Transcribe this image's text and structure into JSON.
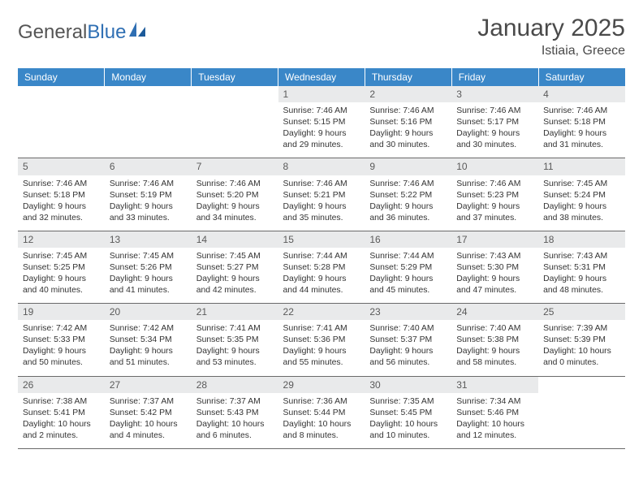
{
  "brand": {
    "part1": "General",
    "part2": "Blue"
  },
  "title": "January 2025",
  "location": "Istiaia, Greece",
  "header_color": "#3a87c8",
  "daynum_bg": "#e9eaeb",
  "text_color": "#333333",
  "columns": [
    "Sunday",
    "Monday",
    "Tuesday",
    "Wednesday",
    "Thursday",
    "Friday",
    "Saturday"
  ],
  "weeks": [
    [
      null,
      null,
      null,
      {
        "n": "1",
        "sunrise": "7:46 AM",
        "sunset": "5:15 PM",
        "day_h": "9",
        "day_m": "29"
      },
      {
        "n": "2",
        "sunrise": "7:46 AM",
        "sunset": "5:16 PM",
        "day_h": "9",
        "day_m": "30"
      },
      {
        "n": "3",
        "sunrise": "7:46 AM",
        "sunset": "5:17 PM",
        "day_h": "9",
        "day_m": "30"
      },
      {
        "n": "4",
        "sunrise": "7:46 AM",
        "sunset": "5:18 PM",
        "day_h": "9",
        "day_m": "31"
      }
    ],
    [
      {
        "n": "5",
        "sunrise": "7:46 AM",
        "sunset": "5:18 PM",
        "day_h": "9",
        "day_m": "32"
      },
      {
        "n": "6",
        "sunrise": "7:46 AM",
        "sunset": "5:19 PM",
        "day_h": "9",
        "day_m": "33"
      },
      {
        "n": "7",
        "sunrise": "7:46 AM",
        "sunset": "5:20 PM",
        "day_h": "9",
        "day_m": "34"
      },
      {
        "n": "8",
        "sunrise": "7:46 AM",
        "sunset": "5:21 PM",
        "day_h": "9",
        "day_m": "35"
      },
      {
        "n": "9",
        "sunrise": "7:46 AM",
        "sunset": "5:22 PM",
        "day_h": "9",
        "day_m": "36"
      },
      {
        "n": "10",
        "sunrise": "7:46 AM",
        "sunset": "5:23 PM",
        "day_h": "9",
        "day_m": "37"
      },
      {
        "n": "11",
        "sunrise": "7:45 AM",
        "sunset": "5:24 PM",
        "day_h": "9",
        "day_m": "38"
      }
    ],
    [
      {
        "n": "12",
        "sunrise": "7:45 AM",
        "sunset": "5:25 PM",
        "day_h": "9",
        "day_m": "40"
      },
      {
        "n": "13",
        "sunrise": "7:45 AM",
        "sunset": "5:26 PM",
        "day_h": "9",
        "day_m": "41"
      },
      {
        "n": "14",
        "sunrise": "7:45 AM",
        "sunset": "5:27 PM",
        "day_h": "9",
        "day_m": "42"
      },
      {
        "n": "15",
        "sunrise": "7:44 AM",
        "sunset": "5:28 PM",
        "day_h": "9",
        "day_m": "44"
      },
      {
        "n": "16",
        "sunrise": "7:44 AM",
        "sunset": "5:29 PM",
        "day_h": "9",
        "day_m": "45"
      },
      {
        "n": "17",
        "sunrise": "7:43 AM",
        "sunset": "5:30 PM",
        "day_h": "9",
        "day_m": "47"
      },
      {
        "n": "18",
        "sunrise": "7:43 AM",
        "sunset": "5:31 PM",
        "day_h": "9",
        "day_m": "48"
      }
    ],
    [
      {
        "n": "19",
        "sunrise": "7:42 AM",
        "sunset": "5:33 PM",
        "day_h": "9",
        "day_m": "50"
      },
      {
        "n": "20",
        "sunrise": "7:42 AM",
        "sunset": "5:34 PM",
        "day_h": "9",
        "day_m": "51"
      },
      {
        "n": "21",
        "sunrise": "7:41 AM",
        "sunset": "5:35 PM",
        "day_h": "9",
        "day_m": "53"
      },
      {
        "n": "22",
        "sunrise": "7:41 AM",
        "sunset": "5:36 PM",
        "day_h": "9",
        "day_m": "55"
      },
      {
        "n": "23",
        "sunrise": "7:40 AM",
        "sunset": "5:37 PM",
        "day_h": "9",
        "day_m": "56"
      },
      {
        "n": "24",
        "sunrise": "7:40 AM",
        "sunset": "5:38 PM",
        "day_h": "9",
        "day_m": "58"
      },
      {
        "n": "25",
        "sunrise": "7:39 AM",
        "sunset": "5:39 PM",
        "day_h": "10",
        "day_m": "0"
      }
    ],
    [
      {
        "n": "26",
        "sunrise": "7:38 AM",
        "sunset": "5:41 PM",
        "day_h": "10",
        "day_m": "2"
      },
      {
        "n": "27",
        "sunrise": "7:37 AM",
        "sunset": "5:42 PM",
        "day_h": "10",
        "day_m": "4"
      },
      {
        "n": "28",
        "sunrise": "7:37 AM",
        "sunset": "5:43 PM",
        "day_h": "10",
        "day_m": "6"
      },
      {
        "n": "29",
        "sunrise": "7:36 AM",
        "sunset": "5:44 PM",
        "day_h": "10",
        "day_m": "8"
      },
      {
        "n": "30",
        "sunrise": "7:35 AM",
        "sunset": "5:45 PM",
        "day_h": "10",
        "day_m": "10"
      },
      {
        "n": "31",
        "sunrise": "7:34 AM",
        "sunset": "5:46 PM",
        "day_h": "10",
        "day_m": "12"
      },
      null
    ]
  ]
}
